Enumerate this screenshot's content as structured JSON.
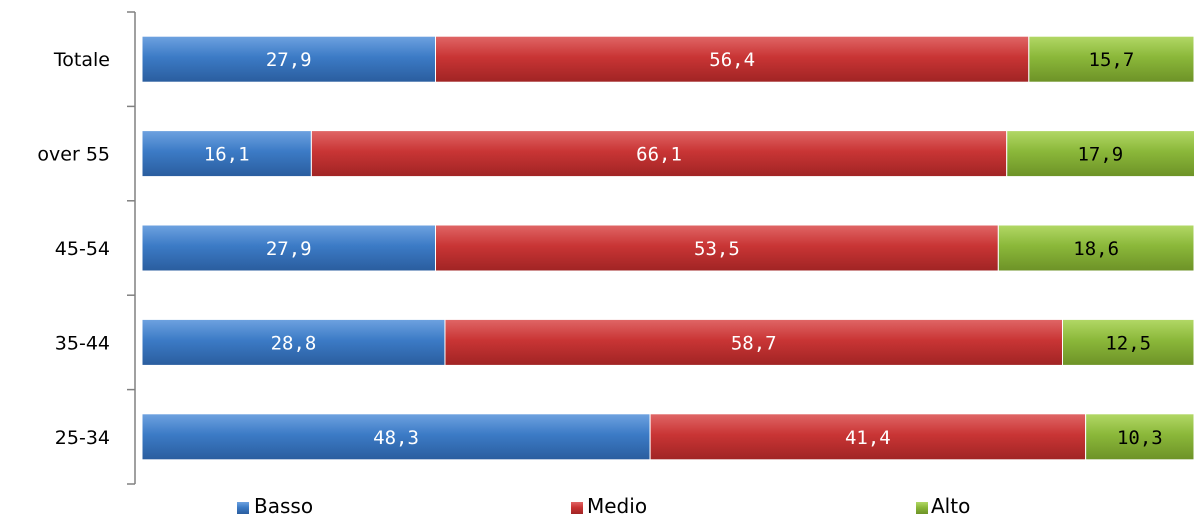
{
  "chart_data": {
    "type": "bar",
    "orientation": "horizontal",
    "stacked": true,
    "title": "",
    "xlabel": "",
    "ylabel": "",
    "xlim": [
      0,
      100
    ],
    "grid": false,
    "legend_position": "bottom",
    "categories": [
      "Totale",
      "over 55",
      "45-54",
      "35-44",
      "25-34"
    ],
    "series": [
      {
        "name": "Basso",
        "color": "#3c7bc6",
        "label_color": "#ffffff",
        "values": [
          "27,9",
          "16,1",
          "27,9",
          "28,8",
          "48,3"
        ]
      },
      {
        "name": "Medio",
        "color": "#c93535",
        "label_color": "#ffffff",
        "values": [
          "56,4",
          "66,1",
          "53,5",
          "58,7",
          "41,4"
        ]
      },
      {
        "name": "Alto",
        "color": "#8bb83a",
        "label_color": "#000000",
        "values": [
          "15,7",
          "17,9",
          "18,6",
          "12,5",
          "10,3"
        ]
      }
    ]
  }
}
